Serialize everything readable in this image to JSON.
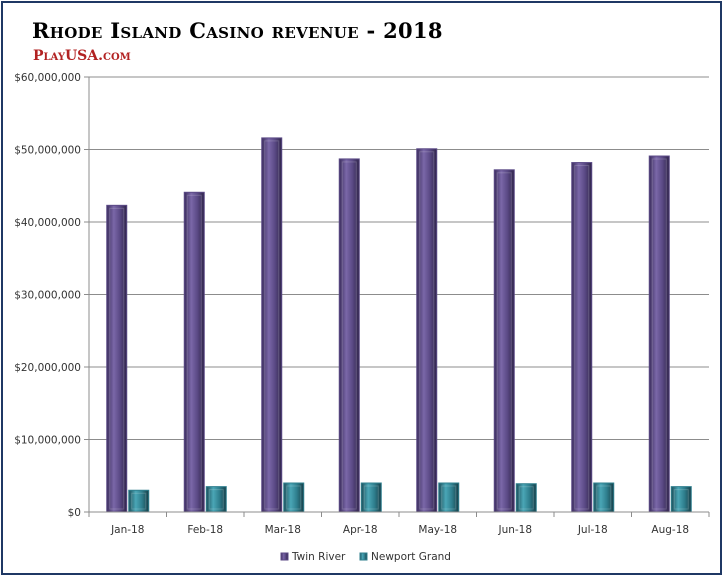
{
  "header": {
    "title": "Rhode Island Casino revenue - 2018",
    "brand": "PlayUSA.com"
  },
  "colors": {
    "frame": "#1f3864",
    "brand": "#b22222",
    "twin_river": "#5b4a86",
    "newport_grand": "#2f7f8e"
  },
  "chart_data": {
    "type": "bar",
    "title": "Rhode Island Casino revenue - 2018",
    "categories": [
      "Jan-18",
      "Feb-18",
      "Mar-18",
      "Apr-18",
      "May-18",
      "Jun-18",
      "Jul-18",
      "Aug-18"
    ],
    "series": [
      {
        "name": "Twin River",
        "values": [
          42300000,
          44100000,
          51600000,
          48700000,
          50100000,
          47200000,
          48200000,
          49100000
        ]
      },
      {
        "name": "Newport Grand",
        "values": [
          3000000,
          3500000,
          4000000,
          4000000,
          4000000,
          3900000,
          4000000,
          3500000
        ]
      }
    ],
    "ylim": [
      0,
      60000000
    ],
    "yticks": [
      0,
      10000000,
      20000000,
      30000000,
      40000000,
      50000000,
      60000000
    ],
    "ytick_labels": [
      "$0",
      "$10,000,000",
      "$20,000,000",
      "$30,000,000",
      "$40,000,000",
      "$50,000,000",
      "$60,000,000"
    ],
    "grid": true,
    "legend_position": "bottom"
  }
}
